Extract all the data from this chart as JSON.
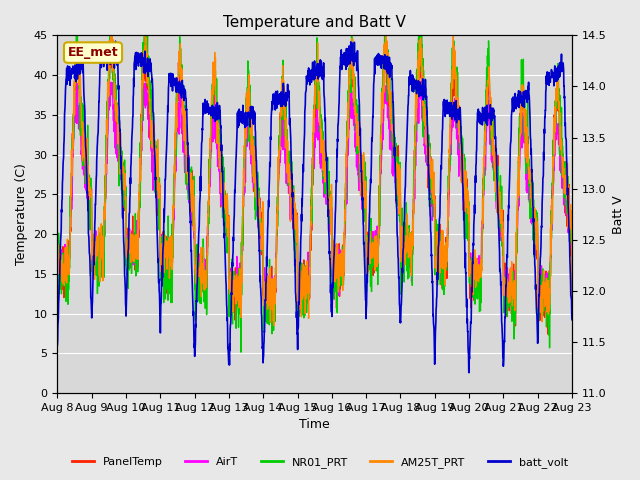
{
  "title": "Temperature and Batt V",
  "xlabel": "Time",
  "ylabel_left": "Temperature (C)",
  "ylabel_right": "Batt V",
  "ylim_left": [
    0,
    45
  ],
  "ylim_right": [
    11.0,
    14.5
  ],
  "fig_bg": "#e8e8e8",
  "plot_bg": "#d8d8d8",
  "legend_label": "EE_met",
  "legend_label_color": "#8B0000",
  "legend_label_bg": "#ffffcc",
  "legend_label_border": "#ccaa00",
  "x_ticks": [
    "Aug 8",
    "Aug 9",
    "Aug 10",
    "Aug 11",
    "Aug 12",
    "Aug 13",
    "Aug 14",
    "Aug 15",
    "Aug 16",
    "Aug 17",
    "Aug 18",
    "Aug 19",
    "Aug 20",
    "Aug 21",
    "Aug 22",
    "Aug 23"
  ],
  "series_labels": [
    "PanelTemp",
    "AirT",
    "NR01_PRT",
    "AM25T_PRT",
    "batt_volt"
  ],
  "series_colors": [
    "#ff2200",
    "#ff00ff",
    "#00cc00",
    "#ff8800",
    "#0000cc"
  ],
  "series_linewidths": [
    1.0,
    1.0,
    1.0,
    1.0,
    1.2
  ],
  "grid_color": "#c8c8c8",
  "n_days": 15,
  "pts_per_day": 144
}
